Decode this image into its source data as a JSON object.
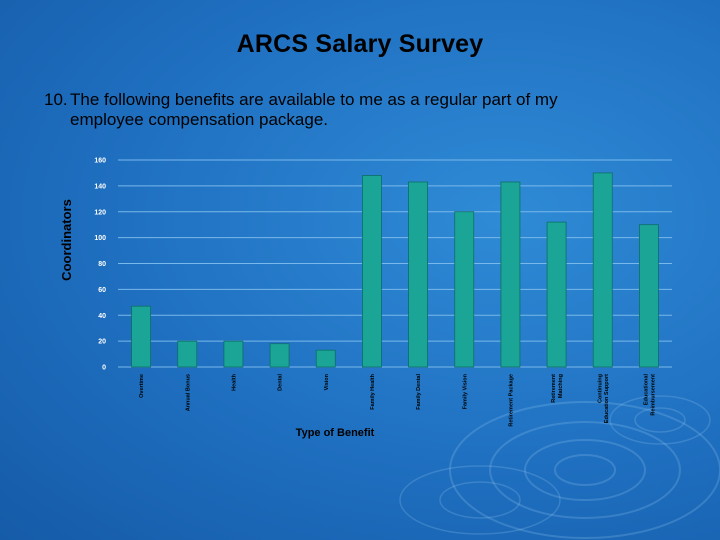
{
  "slide": {
    "title": "ARCS Salary Survey",
    "question_number": "10.",
    "question_line1": "The following benefits are available to me as a regular part of my",
    "question_line2": "employee compensation package."
  },
  "colors": {
    "background": "#1f6fc0",
    "bar": "#1aa596",
    "bar_edge": "#0c6f66",
    "grid": "#79b8ea"
  },
  "chart_data": {
    "type": "bar",
    "title": "",
    "xlabel": "Type of Benefit",
    "ylabel": "Coordinators",
    "ylim": [
      0,
      160
    ],
    "yticks": [
      0,
      20,
      40,
      60,
      80,
      100,
      120,
      140,
      160
    ],
    "grid": true,
    "categories": [
      "Overtime",
      "Annual Bonus",
      "Health",
      "Dental",
      "Vision",
      "Family Health",
      "Family Dental",
      "Family Vision",
      "Retirement Package",
      "Retirement Matching",
      "Continuing Education Support",
      "Educational Reimbursement"
    ],
    "category_lines": [
      [
        "Overtime"
      ],
      [
        "Annual Bonus"
      ],
      [
        "Health"
      ],
      [
        "Dental"
      ],
      [
        "Vision"
      ],
      [
        "Family Health"
      ],
      [
        "Family Dental"
      ],
      [
        "Family Vision"
      ],
      [
        "Retirement Package"
      ],
      [
        "Retirement",
        "Matching"
      ],
      [
        "Continuing",
        "Education Support"
      ],
      [
        "Educational",
        "Reimbursement"
      ]
    ],
    "values": [
      47,
      20,
      20,
      18,
      13,
      148,
      143,
      120,
      143,
      112,
      150,
      110
    ]
  }
}
